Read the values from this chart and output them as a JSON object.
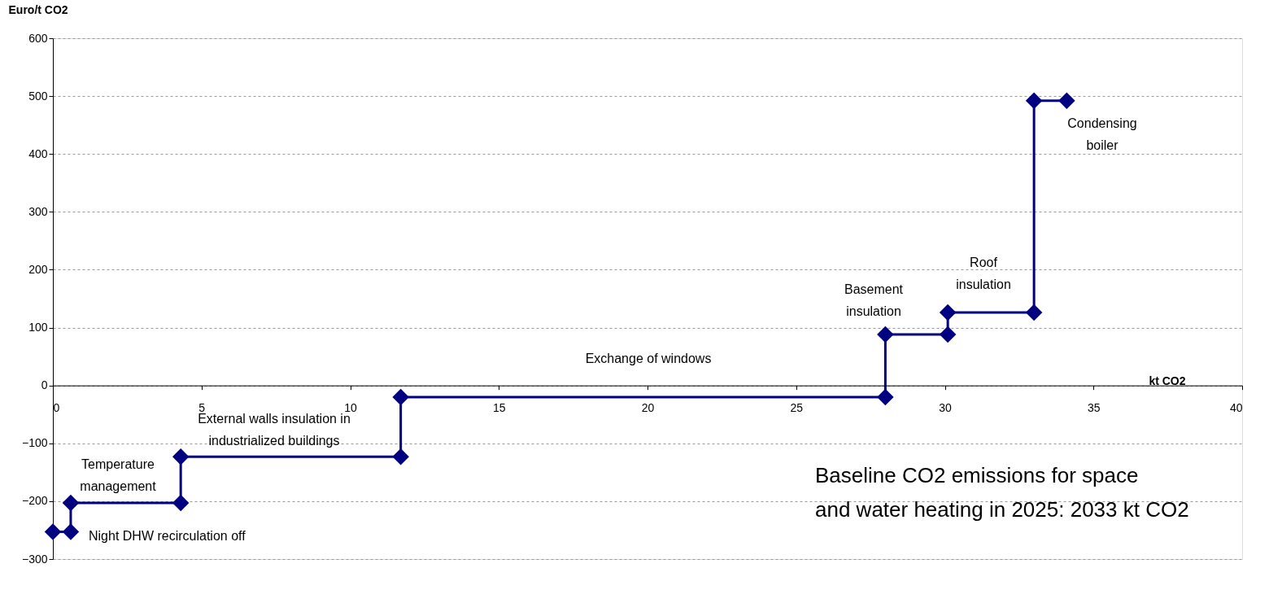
{
  "chart_data": {
    "type": "step",
    "xlabel": "kt CO2",
    "ylabel": "Euro/t CO2",
    "xlim": [
      0,
      40
    ],
    "xticks": [
      0,
      5,
      10,
      15,
      20,
      25,
      30,
      35,
      40
    ],
    "ylim": [
      -300,
      600
    ],
    "yticks": [
      -300,
      -200,
      -100,
      0,
      100,
      200,
      300,
      400,
      500,
      600
    ],
    "grid": "y",
    "marker": "diamond",
    "line_style": "solid",
    "series": [
      {
        "color": "#000080",
        "x": [
          0,
          0.6,
          0.6,
          4.3,
          4.3,
          11.7,
          11.7,
          28,
          28,
          30.1,
          30.1,
          33,
          33,
          34.1
        ],
        "values": [
          -253,
          -253,
          -203,
          -203,
          -123,
          -123,
          -20,
          -20,
          88,
          88,
          126,
          126,
          492,
          492
        ]
      }
    ],
    "annotations": [
      "Night DHW recirculation off",
      "Temperature\nmanagement",
      "External walls insulation in\nindustrialized buildings",
      "Exchange of windows",
      "Basement\ninsulation",
      "Roof\ninsulation",
      "Condensing\nboiler",
      "Baseline CO2 emissions for space\nand water heating  in 2025: 2033 kt CO2"
    ]
  }
}
